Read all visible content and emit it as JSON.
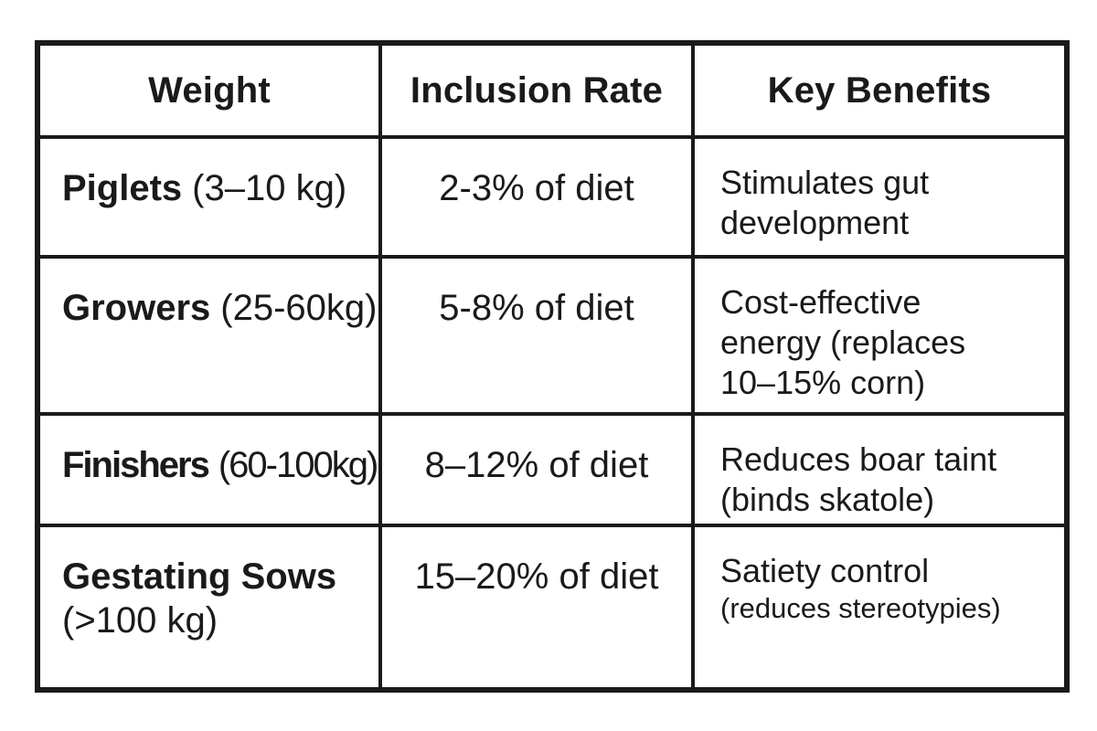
{
  "colors": {
    "text": "#1a1a1a",
    "border": "#1a1a1a",
    "background": "#ffffff"
  },
  "table": {
    "headers": [
      "Weight",
      "Inclusion Rate",
      "Key Benefits"
    ],
    "rows": [
      {
        "weight": {
          "name": "Piglets",
          "detail": "(3–10 kg)"
        },
        "rate": "2-3% of diet",
        "benefits": [
          "Stimulates gut",
          "development"
        ]
      },
      {
        "weight": {
          "name": "Growers",
          "detail": "(25-60kg)"
        },
        "rate": "5-8% of diet",
        "benefits": [
          "Cost-effective",
          "energy (replaces",
          "10–15% corn)"
        ]
      },
      {
        "weight": {
          "name": "Finishers",
          "detail": "(60-100kg)"
        },
        "rate": "8–12% of diet",
        "benefits": [
          "Reduces boar taint",
          "(binds skatole)"
        ]
      },
      {
        "weight": {
          "name": "Gestating Sows",
          "detail": "(>100 kg)"
        },
        "rate": "15–20% of diet",
        "benefits": [
          "Satiety control",
          "(reduces stereotypies)"
        ]
      }
    ]
  },
  "chart_data": {
    "type": "table",
    "title": "",
    "columns": [
      "Weight",
      "Inclusion Rate",
      "Key Benefits"
    ],
    "rows": [
      [
        "Piglets (3–10 kg)",
        "2-3% of diet",
        "Stimulates gut development"
      ],
      [
        "Growers (25-60kg)",
        "5-8% of diet",
        "Cost-effective energy (replaces 10–15% corn)"
      ],
      [
        "Finishers (60-100kg)",
        "8–12% of diet",
        "Reduces boar taint (binds skatole)"
      ],
      [
        "Gestating Sows (>100 kg)",
        "15–20% of diet",
        "Satiety control (reduces stereotypies)"
      ]
    ]
  }
}
